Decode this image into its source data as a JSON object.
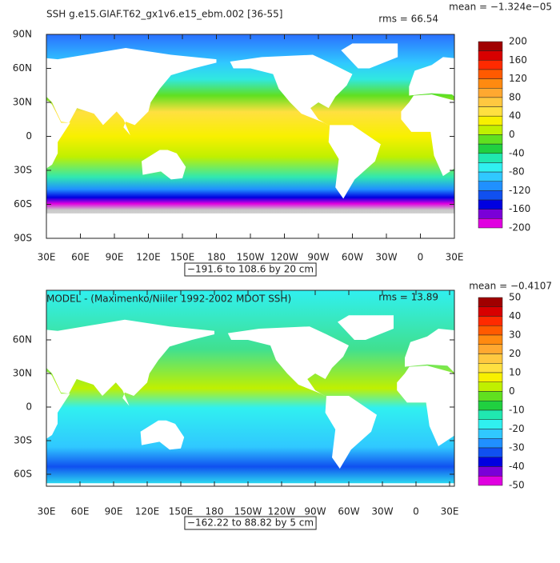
{
  "colorbar_colors": [
    "#a00000",
    "#d80000",
    "#ff2a00",
    "#ff5a00",
    "#ff8a10",
    "#ffa830",
    "#ffc840",
    "#ffe040",
    "#f8f000",
    "#c0f000",
    "#60e020",
    "#20d040",
    "#20e8b0",
    "#30f0f0",
    "#30c8ff",
    "#2090ff",
    "#1050f0",
    "#0000e0",
    "#7a00d8",
    "#e000e0"
  ],
  "panels": [
    {
      "title": "SSH g.e15.GIAF.T62_gx1v6.e15_ebm.002 [36-55]",
      "mean": "mean = −1.324e−05",
      "rms": "rms = 66.54",
      "range_note": "−191.6 to 108.6 by 20 cm",
      "x_ticks": [
        {
          "value": 30,
          "label": "30E"
        },
        {
          "value": 60,
          "label": "60E"
        },
        {
          "value": 90,
          "label": "90E"
        },
        {
          "value": 120,
          "label": "120E"
        },
        {
          "value": 150,
          "label": "150E"
        },
        {
          "value": 180,
          "label": "180"
        },
        {
          "value": 210,
          "label": "150W"
        },
        {
          "value": 240,
          "label": "120W"
        },
        {
          "value": 270,
          "label": "90W"
        },
        {
          "value": 300,
          "label": "60W"
        },
        {
          "value": 330,
          "label": "30W"
        },
        {
          "value": 360,
          "label": "0"
        },
        {
          "value": 390,
          "label": "30E"
        }
      ],
      "y_ticks": [
        {
          "value": 90,
          "label": "90N"
        },
        {
          "value": 60,
          "label": "60N"
        },
        {
          "value": 30,
          "label": "30N"
        },
        {
          "value": 0,
          "label": "0"
        },
        {
          "value": -30,
          "label": "30S"
        },
        {
          "value": -60,
          "label": "60S"
        },
        {
          "value": -90,
          "label": "90S"
        }
      ],
      "colorbar_labels": [
        "200",
        "160",
        "120",
        "80",
        "40",
        "0",
        "-40",
        "-80",
        "-120",
        "-160",
        "-200"
      ]
    },
    {
      "title": "MODEL - (Maximenko/Niiler 1992-2002 MDOT SSH)",
      "mean": "mean = −0.4107",
      "rms": "rms = 13.89",
      "range_note": "−162.22 to 88.82 by 5 cm",
      "x_ticks": [
        {
          "value": 30,
          "label": "30E"
        },
        {
          "value": 60,
          "label": "60E"
        },
        {
          "value": 90,
          "label": "90E"
        },
        {
          "value": 120,
          "label": "120E"
        },
        {
          "value": 150,
          "label": "150E"
        },
        {
          "value": 180,
          "label": "180"
        },
        {
          "value": 210,
          "label": "150W"
        },
        {
          "value": 240,
          "label": "120W"
        },
        {
          "value": 270,
          "label": "90W"
        },
        {
          "value": 300,
          "label": "60W"
        },
        {
          "value": 330,
          "label": "30W"
        },
        {
          "value": 360,
          "label": "0"
        },
        {
          "value": 390,
          "label": "30E"
        }
      ],
      "y_ticks": [
        {
          "value": 60,
          "label": "60N"
        },
        {
          "value": 30,
          "label": "30N"
        },
        {
          "value": 0,
          "label": "0"
        },
        {
          "value": -30,
          "label": "30S"
        },
        {
          "value": -60,
          "label": "60S"
        }
      ],
      "colorbar_labels": [
        "50",
        "40",
        "30",
        "20",
        "10",
        "0",
        "-10",
        "-20",
        "-30",
        "-40",
        "-50"
      ]
    }
  ]
}
